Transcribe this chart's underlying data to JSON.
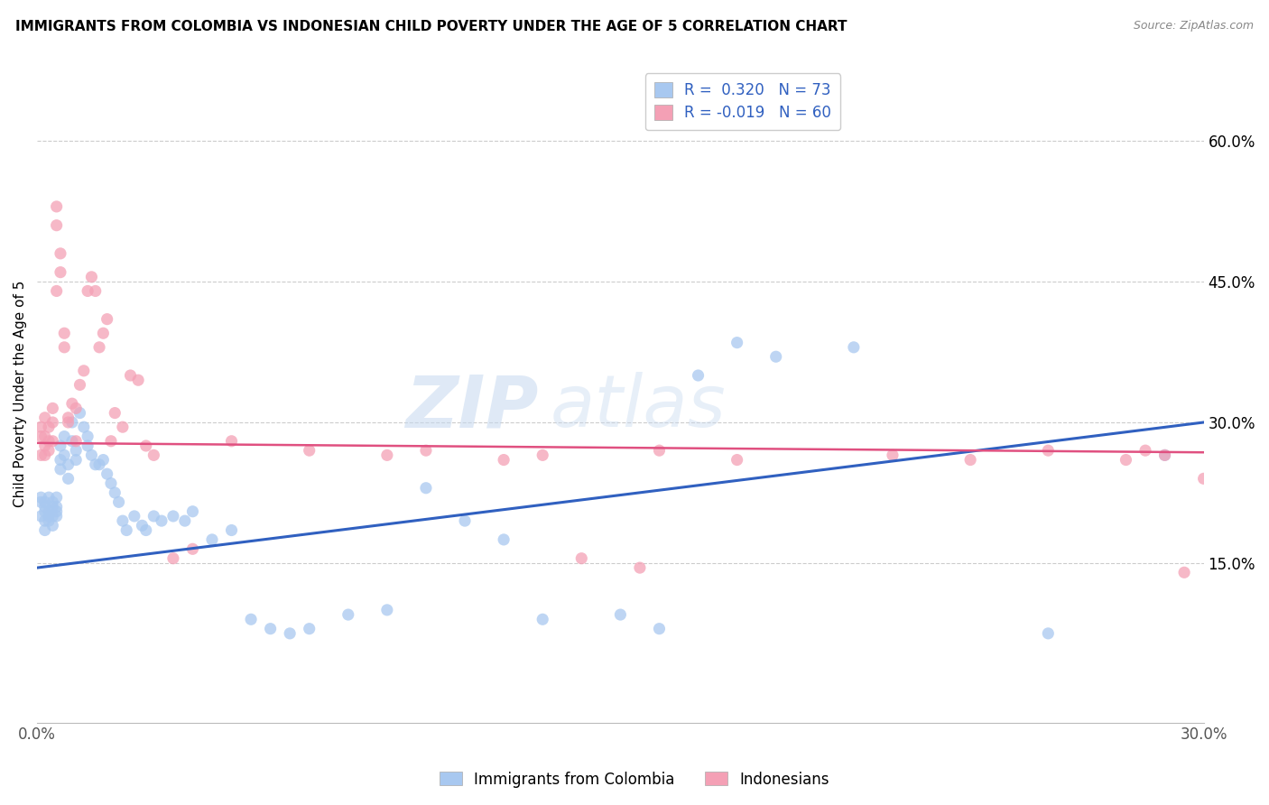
{
  "title": "IMMIGRANTS FROM COLOMBIA VS INDONESIAN CHILD POVERTY UNDER THE AGE OF 5 CORRELATION CHART",
  "source": "Source: ZipAtlas.com",
  "ylabel": "Child Poverty Under the Age of 5",
  "y_tick_labels": [
    "15.0%",
    "30.0%",
    "45.0%",
    "60.0%"
  ],
  "y_tick_values": [
    0.15,
    0.3,
    0.45,
    0.6
  ],
  "x_lim": [
    0.0,
    0.3
  ],
  "y_lim": [
    -0.02,
    0.68
  ],
  "legend_label1": "Immigrants from Colombia",
  "legend_label2": "Indonesians",
  "R1": "0.320",
  "N1": "73",
  "R2": "-0.019",
  "N2": "60",
  "color_blue": "#a8c8f0",
  "color_pink": "#f4a0b5",
  "line_color_blue": "#3060c0",
  "line_color_pink": "#e05080",
  "watermark": "ZIPatlas",
  "colombia_x": [
    0.001,
    0.001,
    0.001,
    0.002,
    0.002,
    0.002,
    0.002,
    0.002,
    0.003,
    0.003,
    0.003,
    0.003,
    0.004,
    0.004,
    0.004,
    0.004,
    0.005,
    0.005,
    0.005,
    0.005,
    0.006,
    0.006,
    0.006,
    0.007,
    0.007,
    0.008,
    0.008,
    0.009,
    0.009,
    0.01,
    0.01,
    0.011,
    0.012,
    0.013,
    0.013,
    0.014,
    0.015,
    0.016,
    0.017,
    0.018,
    0.019,
    0.02,
    0.021,
    0.022,
    0.023,
    0.025,
    0.027,
    0.028,
    0.03,
    0.032,
    0.035,
    0.038,
    0.04,
    0.045,
    0.05,
    0.055,
    0.06,
    0.065,
    0.07,
    0.08,
    0.09,
    0.1,
    0.11,
    0.12,
    0.13,
    0.15,
    0.16,
    0.17,
    0.18,
    0.19,
    0.21,
    0.26,
    0.29
  ],
  "colombia_y": [
    0.215,
    0.22,
    0.2,
    0.195,
    0.205,
    0.21,
    0.185,
    0.215,
    0.195,
    0.205,
    0.2,
    0.22,
    0.21,
    0.2,
    0.215,
    0.19,
    0.205,
    0.22,
    0.21,
    0.2,
    0.275,
    0.26,
    0.25,
    0.285,
    0.265,
    0.24,
    0.255,
    0.3,
    0.28,
    0.27,
    0.26,
    0.31,
    0.295,
    0.285,
    0.275,
    0.265,
    0.255,
    0.255,
    0.26,
    0.245,
    0.235,
    0.225,
    0.215,
    0.195,
    0.185,
    0.2,
    0.19,
    0.185,
    0.2,
    0.195,
    0.2,
    0.195,
    0.205,
    0.175,
    0.185,
    0.09,
    0.08,
    0.075,
    0.08,
    0.095,
    0.1,
    0.23,
    0.195,
    0.175,
    0.09,
    0.095,
    0.08,
    0.35,
    0.385,
    0.37,
    0.38,
    0.075,
    0.265
  ],
  "indonesian_x": [
    0.001,
    0.001,
    0.001,
    0.002,
    0.002,
    0.002,
    0.002,
    0.003,
    0.003,
    0.003,
    0.004,
    0.004,
    0.004,
    0.005,
    0.005,
    0.005,
    0.006,
    0.006,
    0.007,
    0.007,
    0.008,
    0.008,
    0.009,
    0.01,
    0.01,
    0.011,
    0.012,
    0.013,
    0.014,
    0.015,
    0.016,
    0.017,
    0.018,
    0.019,
    0.02,
    0.022,
    0.024,
    0.026,
    0.028,
    0.03,
    0.035,
    0.04,
    0.05,
    0.07,
    0.09,
    0.1,
    0.12,
    0.13,
    0.14,
    0.155,
    0.16,
    0.18,
    0.22,
    0.24,
    0.26,
    0.28,
    0.285,
    0.29,
    0.295,
    0.3
  ],
  "indonesian_y": [
    0.265,
    0.285,
    0.295,
    0.275,
    0.265,
    0.285,
    0.305,
    0.27,
    0.28,
    0.295,
    0.28,
    0.3,
    0.315,
    0.44,
    0.51,
    0.53,
    0.46,
    0.48,
    0.38,
    0.395,
    0.3,
    0.305,
    0.32,
    0.315,
    0.28,
    0.34,
    0.355,
    0.44,
    0.455,
    0.44,
    0.38,
    0.395,
    0.41,
    0.28,
    0.31,
    0.295,
    0.35,
    0.345,
    0.275,
    0.265,
    0.155,
    0.165,
    0.28,
    0.27,
    0.265,
    0.27,
    0.26,
    0.265,
    0.155,
    0.145,
    0.27,
    0.26,
    0.265,
    0.26,
    0.27,
    0.26,
    0.27,
    0.265,
    0.14,
    0.24
  ],
  "blue_line_y0": 0.145,
  "blue_line_y1": 0.3,
  "pink_line_y0": 0.278,
  "pink_line_y1": 0.268
}
